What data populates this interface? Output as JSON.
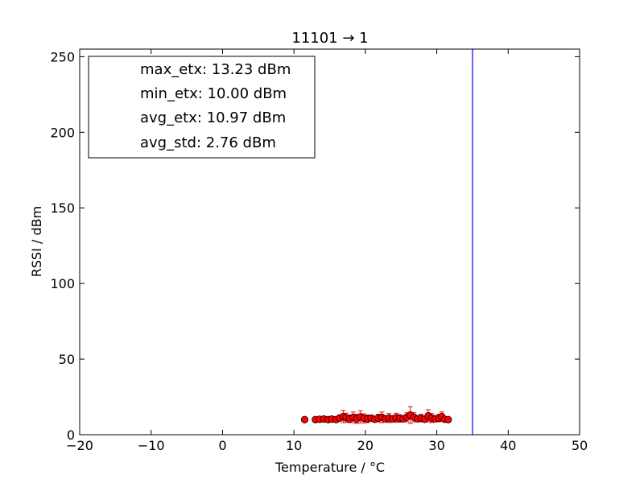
{
  "chart_data": {
    "type": "scatter",
    "title": "11101 → 1",
    "xlabel": "Temperature / °C",
    "ylabel": "RSSI / dBm",
    "xlim": [
      -20,
      50
    ],
    "ylim": [
      0,
      255
    ],
    "xticks": [
      "−20",
      "−10",
      "0",
      "10",
      "20",
      "30",
      "40",
      "50"
    ],
    "xtick_values": [
      -20,
      -10,
      0,
      10,
      20,
      30,
      40,
      50
    ],
    "yticks": [
      "0",
      "50",
      "100",
      "150",
      "200",
      "250"
    ],
    "ytick_values": [
      0,
      50,
      100,
      150,
      200,
      250
    ],
    "grid": false,
    "legend_position": "top-left",
    "legend": [
      "max_etx: 13.23 dBm",
      "min_etx: 10.00 dBm",
      "avg_etx: 10.97 dBm",
      "avg_std: 2.76 dBm"
    ],
    "vline_x": 35,
    "vline_color": "#0000ff",
    "marker_color": "#ff0000",
    "points": [
      {
        "x": 11.5,
        "y": 10.0,
        "err": 0.0
      },
      {
        "x": 13.0,
        "y": 10.0,
        "err": 0.5
      },
      {
        "x": 13.6,
        "y": 10.2,
        "err": 0.8
      },
      {
        "x": 14.2,
        "y": 10.4,
        "err": 1.5
      },
      {
        "x": 14.8,
        "y": 10.0,
        "err": 1.0
      },
      {
        "x": 15.3,
        "y": 10.3,
        "err": 1.2
      },
      {
        "x": 15.9,
        "y": 10.0,
        "err": 0.8
      },
      {
        "x": 16.4,
        "y": 11.0,
        "err": 2.0
      },
      {
        "x": 16.9,
        "y": 12.0,
        "err": 4.0
      },
      {
        "x": 17.3,
        "y": 11.2,
        "err": 3.0
      },
      {
        "x": 17.8,
        "y": 10.5,
        "err": 2.5
      },
      {
        "x": 18.3,
        "y": 11.5,
        "err": 3.5
      },
      {
        "x": 18.8,
        "y": 10.5,
        "err": 3.0
      },
      {
        "x": 19.3,
        "y": 11.8,
        "err": 4.0
      },
      {
        "x": 19.8,
        "y": 10.8,
        "err": 3.0
      },
      {
        "x": 20.3,
        "y": 10.5,
        "err": 2.5
      },
      {
        "x": 20.8,
        "y": 11.0,
        "err": 2.0
      },
      {
        "x": 21.3,
        "y": 10.2,
        "err": 1.5
      },
      {
        "x": 21.8,
        "y": 11.0,
        "err": 2.5
      },
      {
        "x": 22.3,
        "y": 11.5,
        "err": 3.5
      },
      {
        "x": 22.8,
        "y": 10.5,
        "err": 2.0
      },
      {
        "x": 23.3,
        "y": 11.0,
        "err": 3.0
      },
      {
        "x": 23.8,
        "y": 10.5,
        "err": 2.0
      },
      {
        "x": 24.3,
        "y": 11.2,
        "err": 3.0
      },
      {
        "x": 24.8,
        "y": 10.8,
        "err": 2.5
      },
      {
        "x": 25.3,
        "y": 10.5,
        "err": 2.0
      },
      {
        "x": 25.8,
        "y": 11.5,
        "err": 3.0
      },
      {
        "x": 26.3,
        "y": 13.0,
        "err": 5.5
      },
      {
        "x": 26.8,
        "y": 11.5,
        "err": 3.0
      },
      {
        "x": 27.3,
        "y": 10.5,
        "err": 2.0
      },
      {
        "x": 27.8,
        "y": 11.0,
        "err": 2.5
      },
      {
        "x": 28.3,
        "y": 10.2,
        "err": 1.5
      },
      {
        "x": 28.8,
        "y": 12.5,
        "err": 4.0
      },
      {
        "x": 29.3,
        "y": 11.0,
        "err": 3.0
      },
      {
        "x": 29.8,
        "y": 10.5,
        "err": 2.0
      },
      {
        "x": 30.3,
        "y": 11.0,
        "err": 2.5
      },
      {
        "x": 30.7,
        "y": 12.0,
        "err": 3.0
      },
      {
        "x": 31.1,
        "y": 10.2,
        "err": 1.5
      },
      {
        "x": 31.6,
        "y": 10.0,
        "err": 0.5
      }
    ]
  }
}
